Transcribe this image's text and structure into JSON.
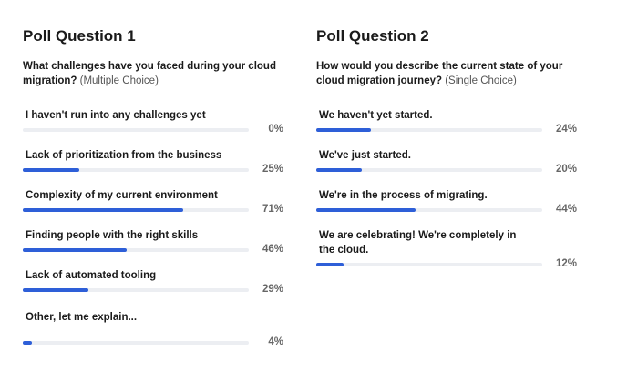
{
  "poll1": {
    "title": "Poll Question 1",
    "question": "What challenges have you faced during your cloud migration?",
    "hint": "(Multiple Choice)",
    "options": [
      {
        "label": "I haven't run into any challenges yet",
        "value": 0,
        "pct_text": "0%"
      },
      {
        "label": "Lack of prioritization from the business",
        "value": 25,
        "pct_text": "25%"
      },
      {
        "label": "Complexity of my current environment",
        "value": 71,
        "pct_text": "71%"
      },
      {
        "label": "Finding people with the right skills",
        "value": 46,
        "pct_text": "46%"
      },
      {
        "label": "Lack of automated tooling",
        "value": 29,
        "pct_text": "29%"
      },
      {
        "label": "Other, let me explain...",
        "value": 4,
        "pct_text": "4%"
      }
    ]
  },
  "poll2": {
    "title": "Poll Question 2",
    "question": "How would you describe the current state of your cloud migration journey?",
    "hint": "(Single Choice)",
    "options": [
      {
        "label": "We haven't yet started.",
        "value": 24,
        "pct_text": "24%"
      },
      {
        "label": "We've just started.",
        "value": 20,
        "pct_text": "20%"
      },
      {
        "label": "We're in the process of migrating.",
        "value": 44,
        "pct_text": "44%"
      },
      {
        "label": "We are celebrating! We're completely in the cloud.",
        "value": 12,
        "pct_text": "12%"
      }
    ]
  },
  "colors": {
    "bar_fill": "#2e5fd8",
    "bar_track": "#eceef2"
  }
}
